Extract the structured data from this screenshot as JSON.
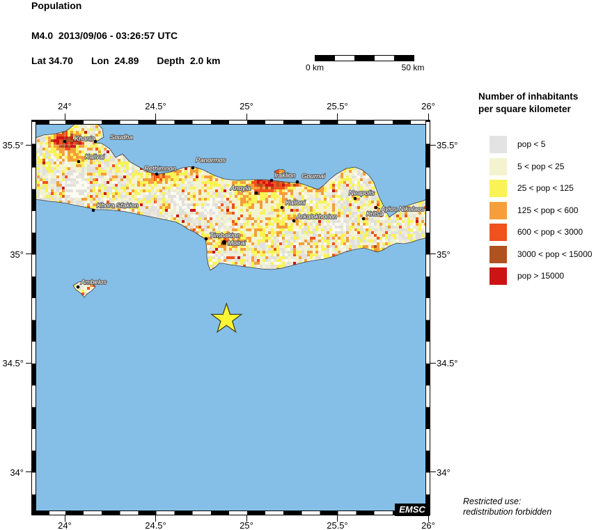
{
  "header": {
    "title": "Population",
    "event": "M4.0  2013/09/06 - 03:26:57 UTC",
    "lat": "Lat 34.70",
    "lon": "Lon  24.89",
    "depth": "Depth  2.0 km"
  },
  "scalebar": {
    "start_label": "0 km",
    "end_label": "50 km",
    "segment_colors": [
      "#000000",
      "#ffffff",
      "#000000",
      "#ffffff",
      "#000000"
    ]
  },
  "legend": {
    "title_line1": "Number of inhabitants",
    "title_line2": "per square kilometer",
    "items": [
      {
        "label": "pop < 5",
        "color": "#e3e3e3"
      },
      {
        "label": "5 < pop < 25",
        "color": "#f4f3cf"
      },
      {
        "label": "25 < pop < 125",
        "color": "#f9f355"
      },
      {
        "label": "125 < pop < 600",
        "color": "#f59e3b"
      },
      {
        "label": "600 < pop < 3000",
        "color": "#f1511c"
      },
      {
        "label": "3000 < pop < 15000",
        "color": "#b0521f"
      },
      {
        "label": "pop > 15000",
        "color": "#cd1414"
      }
    ]
  },
  "map": {
    "sea_color": "#85bfe7",
    "land_base_color": "#eceadb",
    "coast_color": "#3c3c3c",
    "axis": {
      "lon_ticks": [
        {
          "label": "24°",
          "value": 24
        },
        {
          "label": "24.5°",
          "value": 24.5
        },
        {
          "label": "25°",
          "value": 25
        },
        {
          "label": "25.5°",
          "value": 25.5
        },
        {
          "label": "26°",
          "value": 26
        }
      ],
      "lat_ticks": [
        {
          "label": "35.5°",
          "value": 35.5
        },
        {
          "label": "35°",
          "value": 35
        },
        {
          "label": "34.5°",
          "value": 34.5
        },
        {
          "label": "34°",
          "value": 34
        }
      ]
    },
    "towns": [
      {
        "name": "Khania",
        "dot": [
          48,
          31
        ],
        "label": [
          62,
          30
        ]
      },
      {
        "name": "Soudha",
        "dot": [
          92,
          31
        ],
        "label": [
          113,
          28
        ]
      },
      {
        "name": "Kalivai",
        "dot": [
          68,
          60
        ],
        "label": [
          77,
          56
        ]
      },
      {
        "name": "Khora Sfakion",
        "dot": [
          89,
          130
        ],
        "label": [
          94,
          126
        ]
      },
      {
        "name": "Rethimnon",
        "dot": [
          180,
          78
        ],
        "label": [
          162,
          73
        ]
      },
      {
        "name": "Panormos",
        "dot": [
          232,
          69
        ],
        "label": [
          236,
          61
        ]
      },
      {
        "name": "Anoyia",
        "dot": [
          323,
          105
        ],
        "label": [
          286,
          101
        ]
      },
      {
        "name": "Iraklion",
        "dot": [
          345,
          87
        ],
        "label": [
          349,
          83
        ]
      },
      {
        "name": "Gournai",
        "dot": [
          382,
          89
        ],
        "label": [
          388,
          84
        ]
      },
      {
        "name": "Timbakion",
        "dot": [
          251,
          171
        ],
        "label": [
          256,
          169
        ]
      },
      {
        "name": "Moirai",
        "dot": [
          277,
          176
        ],
        "label": [
          282,
          180
        ],
        "big": true
      },
      {
        "name": "Kalloni",
        "dot": [
          360,
          126
        ],
        "label": [
          365,
          122
        ]
      },
      {
        "name": "Arkalokhorion",
        "dot": [
          377,
          145
        ],
        "label": [
          381,
          142
        ]
      },
      {
        "name": "Neapolis",
        "dot": [
          465,
          113
        ],
        "label": [
          456,
          108
        ]
      },
      {
        "name": "Ayios Nikolaos",
        "dot": [
          495,
          126
        ],
        "label": [
          502,
          131
        ],
        "leader": [
          [
            501,
            128
          ],
          [
            496,
            126
          ]
        ]
      },
      {
        "name": "Kritsa",
        "dot": [
          477,
          142
        ],
        "label": [
          481,
          138
        ]
      },
      {
        "name": "Ambelos",
        "dot": [
          67,
          240
        ],
        "label": [
          71,
          236
        ]
      }
    ],
    "epicenter": {
      "lat": 34.7,
      "lon": 24.89,
      "symbol": "star",
      "fill": "#faf636",
      "outline": "#44441a"
    },
    "emsc_label": "EMSC"
  },
  "footer": {
    "restricted_line1": "Restricted use:",
    "restricted_line2": "redistribution forbidden"
  }
}
